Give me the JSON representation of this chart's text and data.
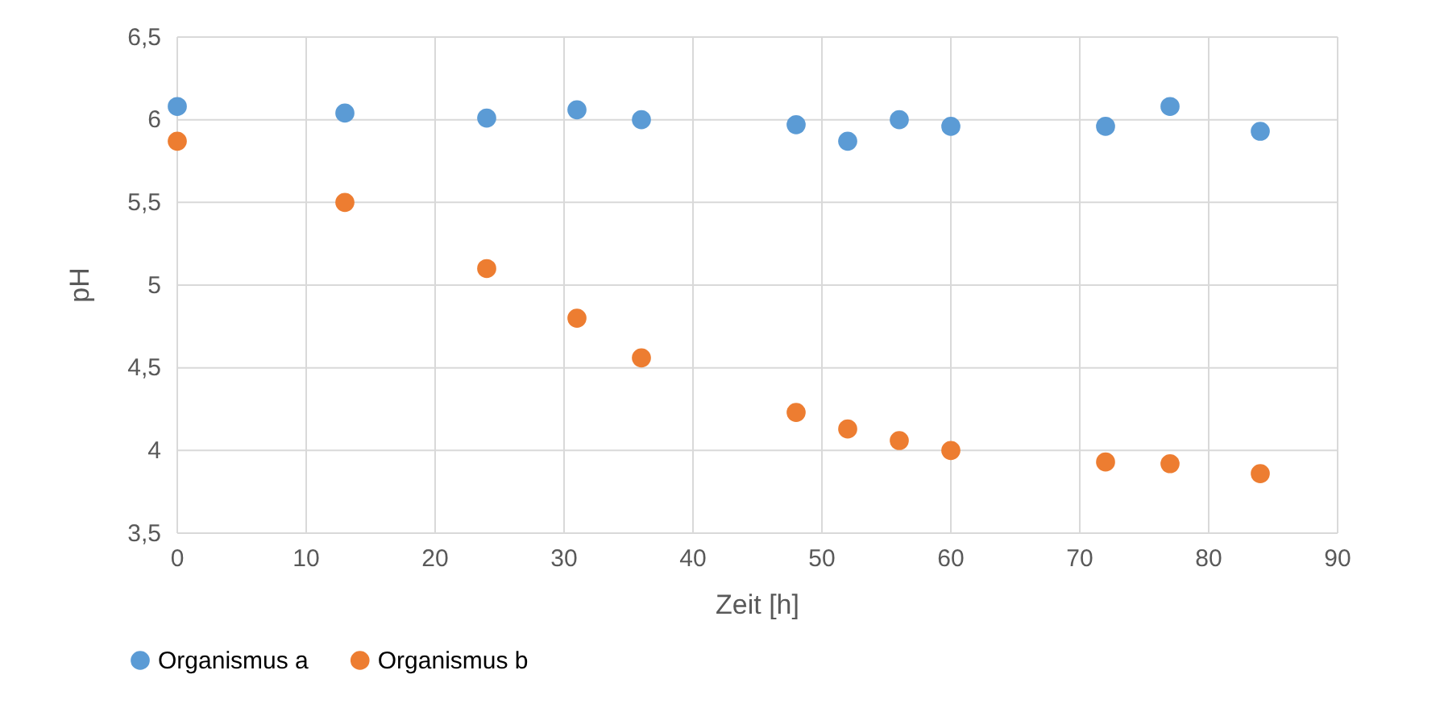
{
  "chart_data": {
    "type": "scatter",
    "xlabel": "Zeit [h]",
    "ylabel": "pH",
    "x": [
      0,
      13,
      24,
      31,
      36,
      48,
      52,
      56,
      60,
      72,
      77,
      84
    ],
    "series": [
      {
        "name": "Organismus a",
        "color": "#5b9bd5",
        "values": [
          6.08,
          6.04,
          6.01,
          6.06,
          6.0,
          5.97,
          5.87,
          6.0,
          5.96,
          5.96,
          6.08,
          5.93
        ]
      },
      {
        "name": "Organismus b",
        "color": "#ed7d31",
        "values": [
          5.87,
          5.5,
          5.1,
          4.8,
          4.56,
          4.23,
          4.13,
          4.06,
          4.0,
          3.93,
          3.92,
          3.86
        ]
      }
    ],
    "xlim": [
      0,
      90
    ],
    "xticks": [
      0,
      10,
      20,
      30,
      40,
      50,
      60,
      70,
      80,
      90
    ],
    "ylim": [
      3.5,
      6.5
    ],
    "yticks": [
      {
        "value": 3.5,
        "label": "3,5"
      },
      4,
      {
        "value": 4.5,
        "label": "4,5"
      },
      5,
      {
        "value": 5.5,
        "label": "5,5"
      },
      6,
      {
        "value": 6.5,
        "label": "6,5"
      }
    ],
    "grid": true,
    "legend": "bottom left",
    "marker": "circle"
  }
}
